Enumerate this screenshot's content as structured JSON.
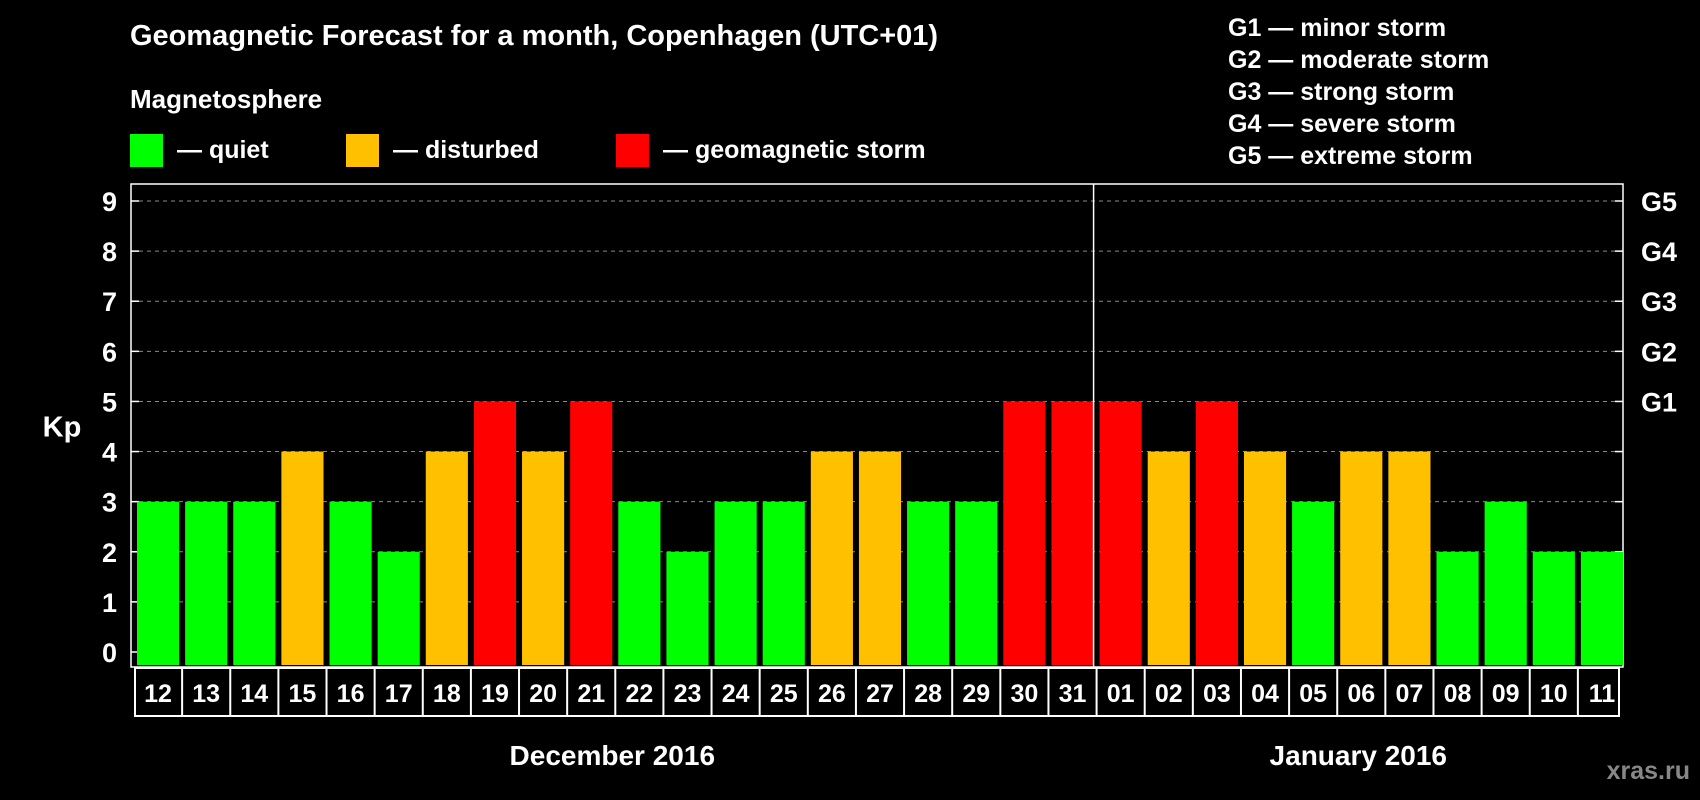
{
  "header": {
    "title": "Geomagnetic Forecast for a month, Copenhagen (UTC+01)",
    "subtitle": "Magnetosphere"
  },
  "legend": [
    {
      "label": "— quiet",
      "color": "#00ff00"
    },
    {
      "label": "— disturbed",
      "color": "#ffc000"
    },
    {
      "label": "— geomagnetic storm",
      "color": "#ff0000"
    }
  ],
  "storm_levels": [
    "G1 — minor storm",
    "G2 — moderate storm",
    "G3 — strong storm",
    "G4 — severe storm",
    "G5 — extreme storm"
  ],
  "watermark": "xras.ru",
  "chart_data": {
    "type": "bar",
    "ylabel": "Kp",
    "ylim": [
      0,
      9
    ],
    "yticks": [
      "0",
      "1",
      "2",
      "3",
      "4",
      "5",
      "6",
      "7",
      "8",
      "9"
    ],
    "right_axis_labels": [
      {
        "value": 5,
        "label": "G1"
      },
      {
        "value": 6,
        "label": "G2"
      },
      {
        "value": 7,
        "label": "G3"
      },
      {
        "value": 8,
        "label": "G4"
      },
      {
        "value": 9,
        "label": "G5"
      }
    ],
    "grid": "dashed horizontal",
    "categories": [
      "12",
      "13",
      "14",
      "15",
      "16",
      "17",
      "18",
      "19",
      "20",
      "21",
      "22",
      "23",
      "24",
      "25",
      "26",
      "27",
      "28",
      "29",
      "30",
      "31",
      "01",
      "02",
      "03",
      "04",
      "05",
      "06",
      "07",
      "08",
      "09",
      "10",
      "11"
    ],
    "values": [
      3,
      3,
      3,
      4,
      3,
      2,
      4,
      5,
      4,
      5,
      3,
      2,
      3,
      3,
      4,
      4,
      3,
      3,
      5,
      5,
      5,
      4,
      5,
      4,
      3,
      4,
      4,
      2,
      3,
      2,
      2
    ],
    "month_groups": [
      {
        "label": "December 2016",
        "start": 0,
        "count": 20
      },
      {
        "label": "January 2016",
        "start": 20,
        "count": 11
      }
    ],
    "colors": {
      "quiet": "#00ff00",
      "disturbed": "#ffc000",
      "storm": "#ff0000"
    }
  }
}
